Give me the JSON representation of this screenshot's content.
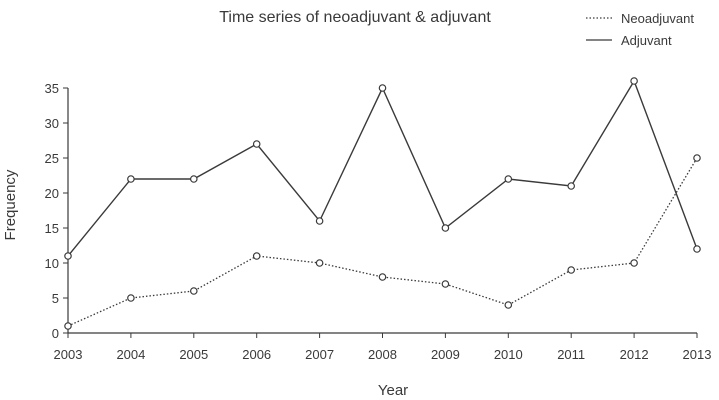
{
  "chart_data": {
    "type": "line",
    "title": "Time series of neoadjuvant & adjuvant",
    "xlabel": "Year",
    "ylabel": "Frequency",
    "x": [
      2003,
      2004,
      2005,
      2006,
      2007,
      2008,
      2009,
      2010,
      2011,
      2012,
      2013
    ],
    "xlim": [
      2003,
      2013
    ],
    "ylim": [
      0,
      35
    ],
    "y_ticks": [
      0,
      5,
      10,
      15,
      20,
      25,
      30,
      35
    ],
    "grid": false,
    "legend_position": "top-right",
    "series": [
      {
        "name": "Neoadjuvant",
        "line_style": "dotted",
        "marker": "open-circle",
        "values": [
          1,
          5,
          6,
          11,
          10,
          8,
          7,
          4,
          9,
          10,
          25
        ]
      },
      {
        "name": "Adjuvant",
        "line_style": "solid",
        "marker": "open-circle",
        "values": [
          11,
          22,
          22,
          27,
          16,
          35,
          15,
          22,
          21,
          36,
          12
        ]
      }
    ],
    "colors": {
      "line": "#3a3a3a",
      "marker_fill": "#ffffff",
      "axis": "#3a3a3a"
    }
  }
}
